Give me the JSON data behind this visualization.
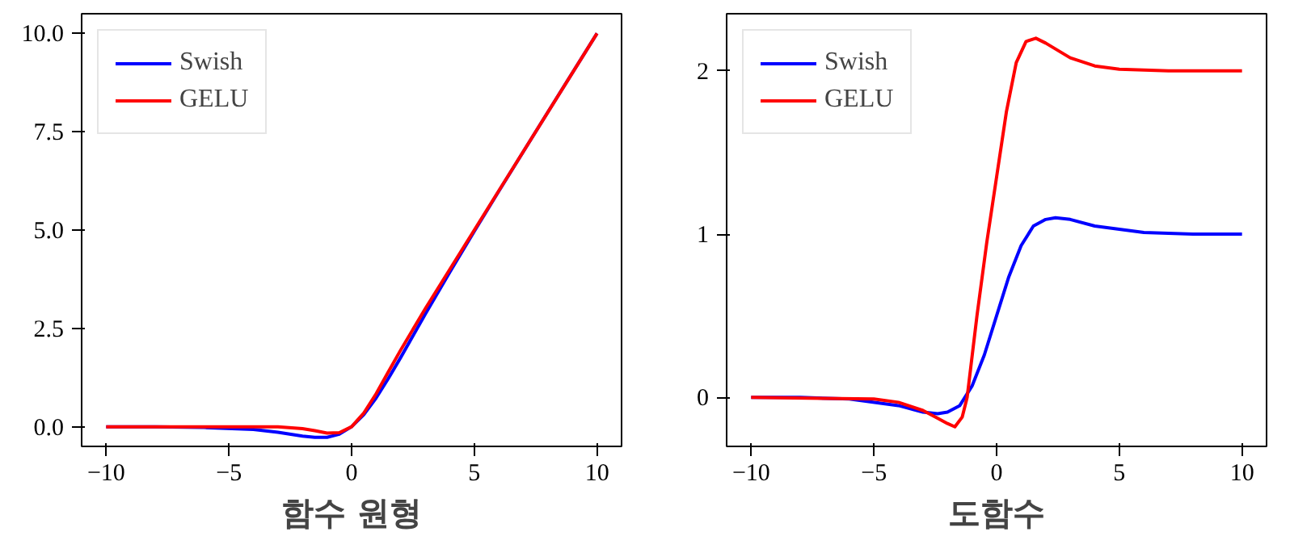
{
  "chart_data": [
    {
      "type": "line",
      "xlabel": "함수 원형",
      "xlim": [
        -11,
        11
      ],
      "ylim": [
        -0.5,
        10.5
      ],
      "xticks": [
        -10,
        -5,
        0,
        5,
        10
      ],
      "yticks": [
        {
          "value": 0,
          "label": "0.0"
        },
        {
          "value": 2.5,
          "label": "2.5"
        },
        {
          "value": 5,
          "label": "5.0"
        },
        {
          "value": 7.5,
          "label": "7.5"
        },
        {
          "value": 10,
          "label": "10.0"
        }
      ],
      "legend": "top left",
      "grid": false,
      "series": [
        {
          "name": "Swish",
          "color": "#0000ff",
          "x": [
            -10,
            -8,
            -6,
            -4,
            -3,
            -2,
            -1.5,
            -1,
            -0.5,
            0,
            0.5,
            1,
            1.5,
            2,
            3,
            4,
            5,
            6,
            8,
            10
          ],
          "values": [
            0,
            0,
            -0.02,
            -0.07,
            -0.14,
            -0.24,
            -0.27,
            -0.27,
            -0.19,
            0,
            0.31,
            0.73,
            1.23,
            1.76,
            2.86,
            3.93,
            4.97,
            5.99,
            8,
            10
          ]
        },
        {
          "name": "GELU",
          "color": "#ff0000",
          "x": [
            -10,
            -8,
            -6,
            -4,
            -3,
            -2,
            -1.5,
            -1,
            -0.5,
            0,
            0.5,
            1,
            1.5,
            2,
            3,
            4,
            5,
            6,
            8,
            10
          ],
          "values": [
            0,
            0,
            0,
            0,
            0,
            -0.05,
            -0.1,
            -0.16,
            -0.15,
            0,
            0.35,
            0.84,
            1.4,
            1.95,
            3,
            4,
            5,
            6,
            8,
            10
          ]
        }
      ]
    },
    {
      "type": "line",
      "xlabel": "도함수",
      "xlim": [
        -11,
        11
      ],
      "ylim": [
        -0.3,
        2.35
      ],
      "xticks": [
        -10,
        -5,
        0,
        5,
        10
      ],
      "yticks": [
        0,
        1,
        2
      ],
      "legend": "top left",
      "grid": false,
      "series": [
        {
          "name": "Swish",
          "color": "#0000ff",
          "x": [
            -10,
            -8,
            -6,
            -4,
            -3,
            -2.4,
            -2,
            -1.5,
            -1,
            -0.5,
            0,
            0.5,
            1,
            1.5,
            2,
            2.4,
            3,
            4,
            5,
            6,
            8,
            10
          ],
          "values": [
            0,
            0,
            -0.01,
            -0.05,
            -0.09,
            -0.1,
            -0.09,
            -0.05,
            0.07,
            0.26,
            0.5,
            0.74,
            0.93,
            1.05,
            1.09,
            1.1,
            1.09,
            1.05,
            1.03,
            1.01,
            1,
            1
          ]
        },
        {
          "name": "GELU",
          "color": "#ff0000",
          "x": [
            -10,
            -5,
            -4,
            -3,
            -2.5,
            -2,
            -1.7,
            -1.4,
            -1.2,
            -0.8,
            -0.4,
            0,
            0.4,
            0.8,
            1.2,
            1.6,
            2,
            3,
            4,
            5,
            7,
            10
          ],
          "values": [
            0,
            -0.01,
            -0.03,
            -0.08,
            -0.12,
            -0.16,
            -0.18,
            -0.12,
            0,
            0.5,
            0.95,
            1.35,
            1.75,
            2.05,
            2.18,
            2.2,
            2.17,
            2.08,
            2.03,
            2.01,
            2,
            2
          ]
        }
      ]
    }
  ]
}
